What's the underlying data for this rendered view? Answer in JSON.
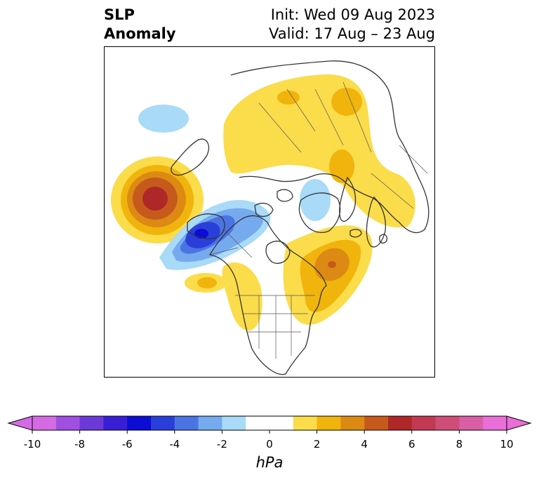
{
  "title": {
    "left_line1": "SLP",
    "left_line2": "Anomaly",
    "right_line1": "Init: Wed 09 Aug 2023",
    "right_line2": "Valid: 17 Aug – 23 Aug"
  },
  "colorbar": {
    "units": "hPa",
    "tick_labels": [
      "-10",
      "-8",
      "-6",
      "-4",
      "-2",
      "0",
      "2",
      "4",
      "6",
      "8",
      "10"
    ],
    "range": [
      -10,
      10
    ],
    "colors": [
      "#d56be4",
      "#9f50e0",
      "#6b39d8",
      "#3a1ed6",
      "#0c0cd4",
      "#2a3fd9",
      "#4b74e3",
      "#76aaee",
      "#a9daf8",
      "#ffffff",
      "#ffffff",
      "#fbdc4a",
      "#f0b40c",
      "#dc8a14",
      "#c65a1c",
      "#ae2828",
      "#c23a52",
      "#cf4e78",
      "#da5ea6",
      "#e96ed8"
    ],
    "under_color": "#d56be4",
    "over_color": "#e96ed8"
  },
  "map": {
    "projection": "north-polar-stereographic",
    "features": [
      "coastlines",
      "country-borders",
      "us-state-borders"
    ],
    "anomalies": [
      {
        "region": "North Pacific",
        "sign": "positive",
        "peak_hpa": 7
      },
      {
        "region": "Gulf of Alaska",
        "sign": "negative",
        "peak_hpa": -7
      },
      {
        "region": "Western North Atlantic",
        "sign": "positive",
        "peak_hpa": 5
      },
      {
        "region": "Siberia / Arctic",
        "sign": "positive",
        "peak_hpa": 3
      },
      {
        "region": "Bering Sea",
        "sign": "negative",
        "peak_hpa": -2
      },
      {
        "region": "Barents Sea",
        "sign": "negative",
        "peak_hpa": -2
      }
    ]
  }
}
